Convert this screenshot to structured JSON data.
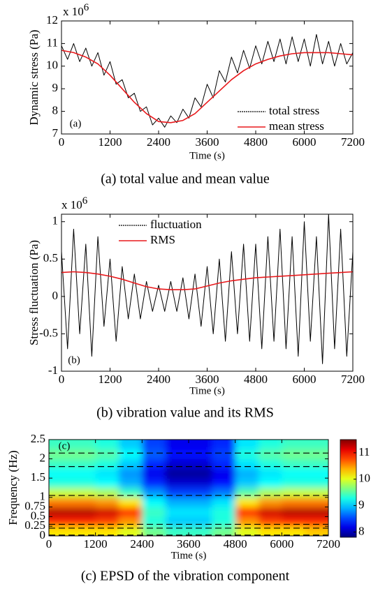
{
  "chart_data": [
    {
      "type": "line",
      "panel_label": "(a)",
      "caption": "(a) total value and mean value",
      "xlabel": "Time (s)",
      "ylabel": "Dynamic stress (Pa)",
      "y_multiplier": "x 10",
      "y_multiplier_exp": "6",
      "xlim": [
        0,
        7200
      ],
      "xticks": [
        0,
        1200,
        2400,
        3600,
        4800,
        6000,
        7200
      ],
      "ylim": [
        7,
        12
      ],
      "yticks": [
        7,
        8,
        9,
        10,
        11,
        12
      ],
      "legend": "lower right",
      "series": [
        {
          "name": "total stress",
          "color": "#000000",
          "linestyle": "dotted",
          "x": [
            0,
            150,
            300,
            450,
            600,
            750,
            900,
            1050,
            1200,
            1350,
            1500,
            1650,
            1800,
            1950,
            2100,
            2250,
            2400,
            2550,
            2700,
            2850,
            3000,
            3150,
            3300,
            3450,
            3600,
            3750,
            3900,
            4050,
            4200,
            4350,
            4500,
            4650,
            4800,
            4950,
            5100,
            5250,
            5400,
            5550,
            5700,
            5850,
            6000,
            6150,
            6300,
            6450,
            6600,
            6750,
            6900,
            7050,
            7200
          ],
          "values": [
            10.9,
            10.3,
            11.0,
            10.2,
            10.8,
            10.0,
            10.6,
            9.6,
            10.2,
            9.2,
            9.4,
            8.6,
            8.8,
            8.0,
            8.2,
            7.4,
            7.7,
            7.3,
            7.8,
            7.5,
            8.1,
            7.7,
            8.6,
            8.2,
            9.2,
            8.6,
            9.8,
            9.3,
            10.4,
            9.7,
            10.7,
            9.9,
            10.9,
            10.1,
            11.1,
            10.2,
            11.2,
            10.1,
            11.3,
            10.2,
            11.2,
            10.0,
            11.4,
            10.1,
            11.1,
            10.0,
            11.0,
            10.1,
            10.6
          ]
        },
        {
          "name": "mean stress",
          "color": "#e8181b",
          "linestyle": "solid",
          "x": [
            0,
            300,
            600,
            900,
            1200,
            1500,
            1800,
            2100,
            2400,
            2700,
            3000,
            3300,
            3600,
            3900,
            4200,
            4500,
            4800,
            5100,
            5400,
            5700,
            6000,
            6300,
            6600,
            6900,
            7200
          ],
          "values": [
            10.7,
            10.6,
            10.4,
            10.1,
            9.6,
            9.0,
            8.4,
            7.9,
            7.55,
            7.5,
            7.6,
            7.9,
            8.4,
            8.9,
            9.4,
            9.8,
            10.1,
            10.3,
            10.45,
            10.55,
            10.6,
            10.6,
            10.6,
            10.55,
            10.5
          ]
        }
      ]
    },
    {
      "type": "line",
      "panel_label": "(b)",
      "caption": "(b) vibration value and its RMS",
      "xlabel": "Time (s)",
      "ylabel": "Stress fluctuation (Pa)",
      "y_multiplier": "x 10",
      "y_multiplier_exp": "6",
      "xlim": [
        0,
        7200
      ],
      "xticks": [
        0,
        1200,
        2400,
        3600,
        4800,
        6000,
        7200
      ],
      "ylim": [
        -1,
        1.1
      ],
      "yticks": [
        -1,
        -0.5,
        0,
        0.5,
        1
      ],
      "legend": "upper left",
      "series": [
        {
          "name": "fluctuation",
          "color": "#000000",
          "linestyle": "dotted",
          "x": [
            0,
            150,
            300,
            450,
            600,
            750,
            900,
            1050,
            1200,
            1350,
            1500,
            1650,
            1800,
            1950,
            2100,
            2250,
            2400,
            2550,
            2700,
            2850,
            3000,
            3150,
            3300,
            3450,
            3600,
            3750,
            3900,
            4050,
            4200,
            4350,
            4500,
            4650,
            4800,
            4950,
            5100,
            5250,
            5400,
            5550,
            5700,
            5850,
            6000,
            6150,
            6300,
            6450,
            6600,
            6750,
            6900,
            7050,
            7200
          ],
          "values": [
            0.6,
            -0.7,
            0.9,
            -0.5,
            0.7,
            -0.8,
            0.8,
            -0.4,
            0.5,
            -0.6,
            0.4,
            -0.3,
            0.3,
            -0.3,
            0.2,
            -0.2,
            0.15,
            -0.2,
            0.2,
            -0.2,
            0.25,
            -0.3,
            0.3,
            -0.4,
            0.4,
            -0.5,
            0.5,
            -0.6,
            0.6,
            -0.5,
            0.7,
            -0.6,
            0.7,
            -0.7,
            0.8,
            -0.6,
            0.9,
            -0.7,
            0.8,
            -0.8,
            1.0,
            -0.6,
            0.8,
            -0.9,
            1.1,
            -0.7,
            0.9,
            -0.8,
            0.6
          ]
        },
        {
          "name": "RMS",
          "color": "#e8181b",
          "linestyle": "solid",
          "x": [
            0,
            300,
            600,
            900,
            1200,
            1500,
            1800,
            2100,
            2400,
            2700,
            3000,
            3300,
            3600,
            3900,
            4200,
            4500,
            4800,
            5100,
            5400,
            5700,
            6000,
            6300,
            6600,
            6900,
            7200
          ],
          "values": [
            0.32,
            0.33,
            0.32,
            0.3,
            0.27,
            0.23,
            0.18,
            0.13,
            0.1,
            0.09,
            0.09,
            0.1,
            0.14,
            0.18,
            0.21,
            0.23,
            0.25,
            0.26,
            0.27,
            0.28,
            0.29,
            0.3,
            0.31,
            0.32,
            0.33
          ]
        }
      ]
    },
    {
      "type": "heatmap",
      "panel_label": "(c)",
      "caption": "(c) EPSD of the vibration component",
      "xlabel": "Time (s)",
      "ylabel": "Frequency (Hz)",
      "xlim": [
        0,
        7200
      ],
      "xticks": [
        0,
        1200,
        2400,
        3600,
        4800,
        6000,
        7200
      ],
      "ylim": [
        0,
        2.5
      ],
      "yticks": [
        0,
        0.25,
        0.5,
        0.75,
        1,
        1.5,
        2,
        2.5
      ],
      "clim": [
        7.8,
        11.5
      ],
      "colorbar_ticks": [
        8,
        9,
        10,
        11
      ],
      "dashed_lines": [
        2.15,
        1.8,
        1.05,
        0.3,
        0.2,
        0.02
      ],
      "x": [
        300,
        900,
        1500,
        2100,
        2700,
        3300,
        3900,
        4500,
        5100,
        5700,
        6300,
        6900
      ],
      "y": [
        0.125,
        0.375,
        0.625,
        0.875,
        1.125,
        1.375,
        1.625,
        1.875,
        2.125,
        2.375
      ],
      "z": [
        [
          10.2,
          10.2,
          10.2,
          10.0,
          9.6,
          9.4,
          9.4,
          9.6,
          10.0,
          10.2,
          10.2,
          10.3
        ],
        [
          10.9,
          10.9,
          10.8,
          10.5,
          9.3,
          9.0,
          9.0,
          9.3,
          10.5,
          10.8,
          10.9,
          10.9
        ],
        [
          11.3,
          11.3,
          11.2,
          10.9,
          9.4,
          9.1,
          9.1,
          9.3,
          10.9,
          11.2,
          11.3,
          11.3
        ],
        [
          10.6,
          10.6,
          10.5,
          10.2,
          9.2,
          8.9,
          8.9,
          9.1,
          10.2,
          10.5,
          10.6,
          10.6
        ],
        [
          9.9,
          9.9,
          9.8,
          9.4,
          8.8,
          8.5,
          8.5,
          8.7,
          9.5,
          9.8,
          9.9,
          9.9
        ],
        [
          9.3,
          9.3,
          9.2,
          8.9,
          8.4,
          8.1,
          8.1,
          8.3,
          9.0,
          9.2,
          9.3,
          9.3
        ],
        [
          9.2,
          9.2,
          9.1,
          8.8,
          8.2,
          7.9,
          7.9,
          8.2,
          8.9,
          9.1,
          9.2,
          9.2
        ],
        [
          9.4,
          9.4,
          9.3,
          9.0,
          8.4,
          8.1,
          8.1,
          8.4,
          9.1,
          9.3,
          9.4,
          9.4
        ],
        [
          9.6,
          9.6,
          9.5,
          9.2,
          8.6,
          8.3,
          8.3,
          8.5,
          9.3,
          9.5,
          9.6,
          9.6
        ],
        [
          9.4,
          9.4,
          9.3,
          9.0,
          8.5,
          8.2,
          8.2,
          8.4,
          9.1,
          9.3,
          9.4,
          9.4
        ]
      ]
    }
  ]
}
